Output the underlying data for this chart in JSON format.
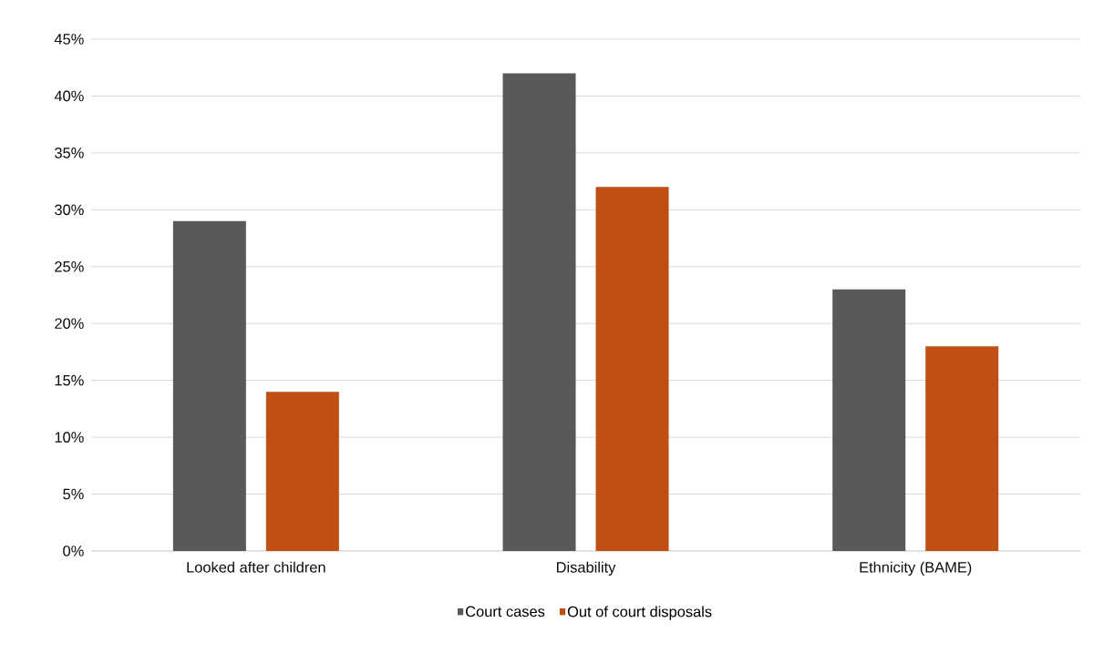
{
  "chart_data": {
    "type": "bar",
    "categories": [
      "Looked after children",
      "Disability",
      "Ethnicity (BAME)"
    ],
    "series": [
      {
        "name": "Court cases",
        "color": "#595959",
        "values": [
          29,
          42,
          23
        ]
      },
      {
        "name": "Out of court disposals",
        "color": "#c04f15",
        "values": [
          14,
          32,
          18
        ]
      }
    ],
    "ylim": [
      0,
      45
    ],
    "yticks": [
      {
        "value": 0,
        "label": "0%"
      },
      {
        "value": 5,
        "label": "5%"
      },
      {
        "value": 10,
        "label": "10%"
      },
      {
        "value": 15,
        "label": "15%"
      },
      {
        "value": 20,
        "label": "20%"
      },
      {
        "value": 25,
        "label": "25%"
      },
      {
        "value": 30,
        "label": "30%"
      },
      {
        "value": 35,
        "label": "35%"
      },
      {
        "value": 40,
        "label": "40%"
      },
      {
        "value": 45,
        "label": "45%"
      }
    ],
    "grid": "y",
    "legend": "bottom"
  }
}
